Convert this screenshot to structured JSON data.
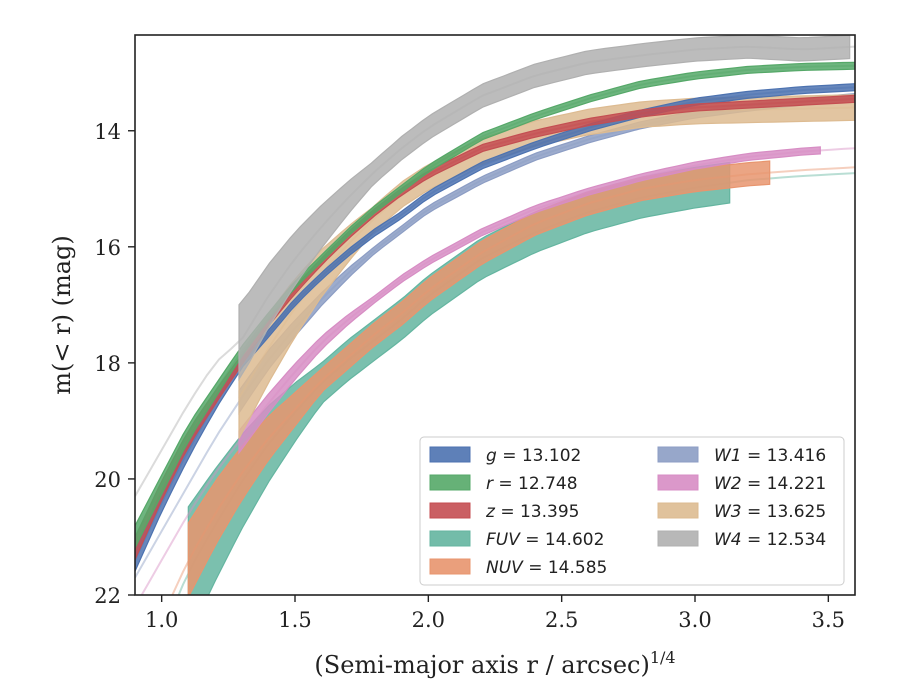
{
  "chart_data": {
    "type": "line",
    "xlabel": "(Semi-major axis r / arcsec)",
    "xlabel_sup": "1/4",
    "ylabel": "m(< r) (mag)",
    "xlim": [
      0.9,
      3.6
    ],
    "ylim": [
      22,
      12.35
    ],
    "y_inverted": true,
    "x_ticks": [
      1.0,
      1.5,
      2.0,
      2.5,
      3.0,
      3.5
    ],
    "x_tick_labels": [
      "1.0",
      "1.5",
      "2.0",
      "2.5",
      "3.0",
      "3.5"
    ],
    "y_ticks": [
      14,
      16,
      18,
      20,
      22
    ],
    "y_tick_labels": [
      "14",
      "16",
      "18",
      "20",
      "22"
    ],
    "grid": false,
    "legend_position": "lower-right",
    "series": [
      {
        "key": "g",
        "name": "g = 13.102",
        "legend_var": "g",
        "legend_value": "13.102",
        "color": "#4c72b0",
        "x": [
          0.9,
          1.0,
          1.1,
          1.2,
          1.3,
          1.4,
          1.5,
          1.6,
          1.7,
          1.8,
          1.9,
          2.0,
          2.2,
          2.4,
          2.6,
          2.8,
          3.0,
          3.2,
          3.4,
          3.6
        ],
        "y": [
          21.4,
          20.4,
          19.5,
          18.7,
          18.0,
          17.5,
          16.95,
          16.5,
          16.1,
          15.75,
          15.45,
          15.1,
          14.6,
          14.25,
          13.95,
          13.7,
          13.5,
          13.38,
          13.3,
          13.25
        ],
        "band": 0.06,
        "solid_from": 0.9,
        "solid_to": 3.6
      },
      {
        "key": "r",
        "name": "r = 12.748",
        "legend_var": "r",
        "legend_value": "12.748",
        "color": "#55a868",
        "x": [
          0.9,
          1.0,
          1.1,
          1.2,
          1.3,
          1.4,
          1.5,
          1.6,
          1.7,
          1.8,
          1.9,
          2.0,
          2.2,
          2.4,
          2.6,
          2.8,
          3.0,
          3.2,
          3.4,
          3.6
        ],
        "y": [
          21.0,
          20.1,
          19.2,
          18.5,
          17.8,
          17.2,
          16.65,
          16.2,
          15.75,
          15.35,
          15.0,
          14.65,
          14.1,
          13.75,
          13.45,
          13.2,
          13.05,
          12.95,
          12.9,
          12.88
        ],
        "band": 0.06,
        "solid_from": 0.9,
        "solid_to": 3.6
      },
      {
        "key": "z",
        "name": "z = 13.395",
        "legend_var": "z",
        "legend_value": "13.395",
        "color": "#c44e52",
        "x": [
          0.9,
          1.0,
          1.1,
          1.2,
          1.3,
          1.4,
          1.5,
          1.6,
          1.7,
          1.8,
          1.9,
          2.0,
          2.2,
          2.4,
          2.6,
          2.8,
          3.0,
          3.2,
          3.4,
          3.6
        ],
        "y": [
          21.2,
          20.2,
          19.3,
          18.6,
          17.95,
          17.3,
          16.75,
          16.25,
          15.8,
          15.4,
          15.05,
          14.75,
          14.3,
          14.05,
          13.85,
          13.7,
          13.6,
          13.55,
          13.5,
          13.45
        ],
        "band": 0.06,
        "solid_from": 0.9,
        "solid_to": 3.6
      },
      {
        "key": "fuv",
        "name": "FUV = 14.602",
        "legend_var": "FUV",
        "legend_value": "14.602",
        "color": "#64b5a0",
        "x": [
          0.9,
          1.0,
          1.1,
          1.2,
          1.3,
          1.4,
          1.5,
          1.6,
          1.7,
          1.8,
          1.9,
          2.0,
          2.2,
          2.4,
          2.6,
          2.8,
          3.0,
          3.2,
          3.4,
          3.6
        ],
        "y": [
          23.6,
          22.7,
          21.6,
          20.8,
          20.05,
          19.4,
          18.85,
          18.35,
          17.95,
          17.6,
          17.25,
          16.85,
          16.2,
          15.75,
          15.4,
          15.15,
          14.98,
          14.85,
          14.78,
          14.73
        ],
        "band": 0.35,
        "solid_from": 1.1,
        "solid_to": 3.13
      },
      {
        "key": "nuv",
        "name": "NUV = 14.585",
        "legend_var": "NUV",
        "legend_value": "14.585",
        "color": "#e8956e",
        "x": [
          0.9,
          1.0,
          1.1,
          1.2,
          1.3,
          1.4,
          1.5,
          1.6,
          1.7,
          1.8,
          1.9,
          2.0,
          2.2,
          2.4,
          2.6,
          2.8,
          3.0,
          3.2,
          3.4,
          3.6
        ],
        "y": [
          23.3,
          22.4,
          21.4,
          20.6,
          19.9,
          19.3,
          18.8,
          18.3,
          17.9,
          17.5,
          17.15,
          16.75,
          16.1,
          15.6,
          15.25,
          15.0,
          14.85,
          14.75,
          14.68,
          14.63
        ],
        "band": 0.2,
        "solid_from": 1.1,
        "solid_to": 3.28
      },
      {
        "key": "w1",
        "name": "W1 = 13.416",
        "legend_var": "W1",
        "legend_value": "13.416",
        "color": "#8c9dc4",
        "x": [
          0.9,
          1.0,
          1.1,
          1.2,
          1.3,
          1.4,
          1.5,
          1.6,
          1.7,
          1.8,
          1.9,
          2.0,
          2.2,
          2.4,
          2.6,
          2.8,
          3.0,
          3.2,
          3.4,
          3.6
        ],
        "y": [
          21.7,
          20.9,
          20.1,
          19.3,
          18.6,
          17.95,
          17.4,
          16.9,
          16.45,
          16.05,
          15.7,
          15.35,
          14.85,
          14.45,
          14.15,
          13.9,
          13.72,
          13.6,
          13.5,
          13.42
        ],
        "band": 0.06,
        "solid_from": 1.29,
        "solid_to": 3.6
      },
      {
        "key": "w2",
        "name": "W2 = 14.221",
        "legend_var": "W2",
        "legend_value": "14.221",
        "color": "#d78dc4",
        "x": [
          0.9,
          1.0,
          1.1,
          1.2,
          1.3,
          1.4,
          1.5,
          1.6,
          1.7,
          1.8,
          1.9,
          2.0,
          2.2,
          2.4,
          2.6,
          2.8,
          3.0,
          3.2,
          3.4,
          3.6
        ],
        "y": [
          22.2,
          21.4,
          20.6,
          19.9,
          19.3,
          18.7,
          18.15,
          17.65,
          17.25,
          16.9,
          16.55,
          16.25,
          15.75,
          15.35,
          15.05,
          14.8,
          14.6,
          14.45,
          14.36,
          14.3
        ],
        "band": 0.06,
        "solid_from": 1.29,
        "solid_to": 3.47
      },
      {
        "key": "w3",
        "name": "W3 = 13.625",
        "legend_var": "W3",
        "legend_value": "13.625",
        "color": "#ddbb91",
        "x": [
          1.29,
          1.4,
          1.5,
          1.6,
          1.7,
          1.8,
          1.9,
          2.0,
          2.2,
          2.4,
          2.6,
          2.8,
          3.0,
          3.2,
          3.4,
          3.6
        ],
        "y": [
          18.6,
          17.75,
          17.05,
          16.45,
          15.95,
          15.5,
          15.1,
          14.8,
          14.35,
          14.05,
          13.85,
          13.72,
          13.66,
          13.64,
          13.62,
          13.6
        ],
        "band": 0.22,
        "solid_from": 1.29,
        "solid_to": 3.6
      },
      {
        "key": "w4",
        "name": "W4 = 12.534",
        "legend_var": "W4",
        "legend_value": "12.534",
        "color": "#b0b0b0",
        "x": [
          0.9,
          1.0,
          1.1,
          1.2,
          1.3,
          1.4,
          1.5,
          1.6,
          1.7,
          1.8,
          1.9,
          2.0,
          2.2,
          2.4,
          2.6,
          2.8,
          3.0,
          3.2,
          3.4,
          3.6
        ],
        "y": [
          20.3,
          19.5,
          18.7,
          18.0,
          17.6,
          16.85,
          16.2,
          15.65,
          15.15,
          14.7,
          14.3,
          13.95,
          13.4,
          13.05,
          12.82,
          12.7,
          12.6,
          12.55,
          12.6,
          12.55
        ],
        "band": 0.2,
        "solid_from": 1.29,
        "solid_to": 3.58
      }
    ]
  }
}
